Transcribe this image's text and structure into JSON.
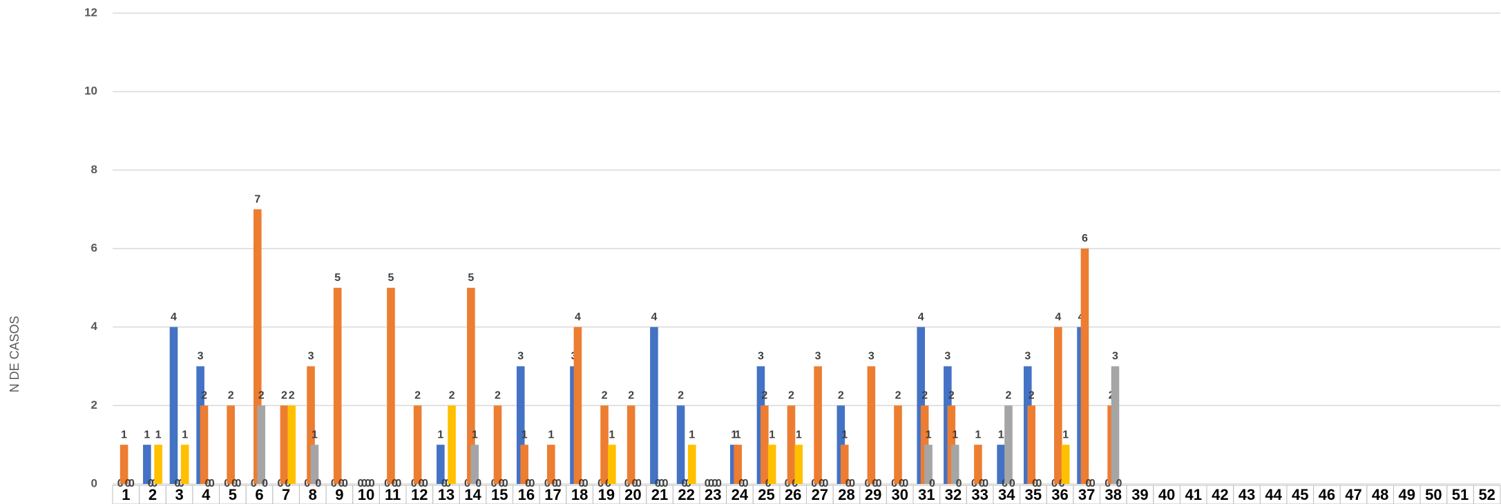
{
  "chart_data": {
    "type": "bar",
    "y_label": "N DE CASOS",
    "categories": [
      "1",
      "2",
      "3",
      "4",
      "5",
      "6",
      "7",
      "8",
      "9",
      "10",
      "11",
      "12",
      "13",
      "14",
      "15",
      "16",
      "17",
      "18",
      "19",
      "20",
      "21",
      "22",
      "23",
      "24",
      "25",
      "26",
      "27",
      "28",
      "29",
      "30",
      "31",
      "32",
      "33",
      "34",
      "35",
      "36",
      "37",
      "38",
      "39",
      "40",
      "41",
      "42",
      "43",
      "44",
      "45",
      "46",
      "47",
      "48",
      "49",
      "50",
      "51",
      "52"
    ],
    "series": [
      {
        "color": "#4472c4",
        "values": [
          0,
          1,
          4,
          3,
          0,
          0,
          0,
          0,
          0,
          0,
          0,
          0,
          1,
          0,
          0,
          3,
          0,
          3,
          0,
          0,
          4,
          2,
          0,
          1,
          3,
          0,
          0,
          2,
          0,
          0,
          4,
          3,
          0,
          1,
          3,
          0,
          4,
          0,
          null,
          null,
          null,
          null,
          null,
          null,
          null,
          null,
          null,
          null,
          null,
          null,
          null,
          null
        ]
      },
      {
        "color": "#ed7d31",
        "values": [
          1,
          0,
          0,
          2,
          2,
          7,
          2,
          3,
          5,
          0,
          5,
          2,
          0,
          5,
          2,
          1,
          1,
          4,
          2,
          2,
          0,
          0,
          0,
          1,
          2,
          2,
          3,
          1,
          3,
          2,
          2,
          2,
          1,
          0,
          2,
          4,
          6,
          2,
          null,
          null,
          null,
          null,
          null,
          null,
          null,
          null,
          null,
          null,
          null,
          null,
          null,
          null
        ]
      },
      {
        "color": "#a5a5a5",
        "values": [
          0,
          0,
          0,
          0,
          0,
          2,
          0,
          1,
          0,
          0,
          0,
          0,
          0,
          1,
          0,
          0,
          0,
          0,
          0,
          0,
          0,
          0,
          0,
          0,
          0,
          0,
          0,
          0,
          0,
          0,
          1,
          1,
          0,
          2,
          0,
          0,
          0,
          3,
          null,
          null,
          null,
          null,
          null,
          null,
          null,
          null,
          null,
          null,
          null,
          null,
          null,
          null
        ]
      },
      {
        "color": "#ffc000",
        "values": [
          0,
          1,
          1,
          0,
          0,
          0,
          2,
          0,
          0,
          0,
          0,
          0,
          2,
          0,
          0,
          0,
          0,
          0,
          1,
          0,
          0,
          1,
          0,
          0,
          1,
          1,
          0,
          0,
          0,
          0,
          0,
          0,
          0,
          0,
          0,
          1,
          0,
          0,
          null,
          null,
          null,
          null,
          null,
          null,
          null,
          null,
          null,
          null,
          null,
          null,
          null,
          null
        ]
      }
    ],
    "ylim": [
      0,
      12
    ],
    "yticks": [
      0,
      2,
      4,
      6,
      8,
      10,
      12
    ],
    "grid": true
  }
}
